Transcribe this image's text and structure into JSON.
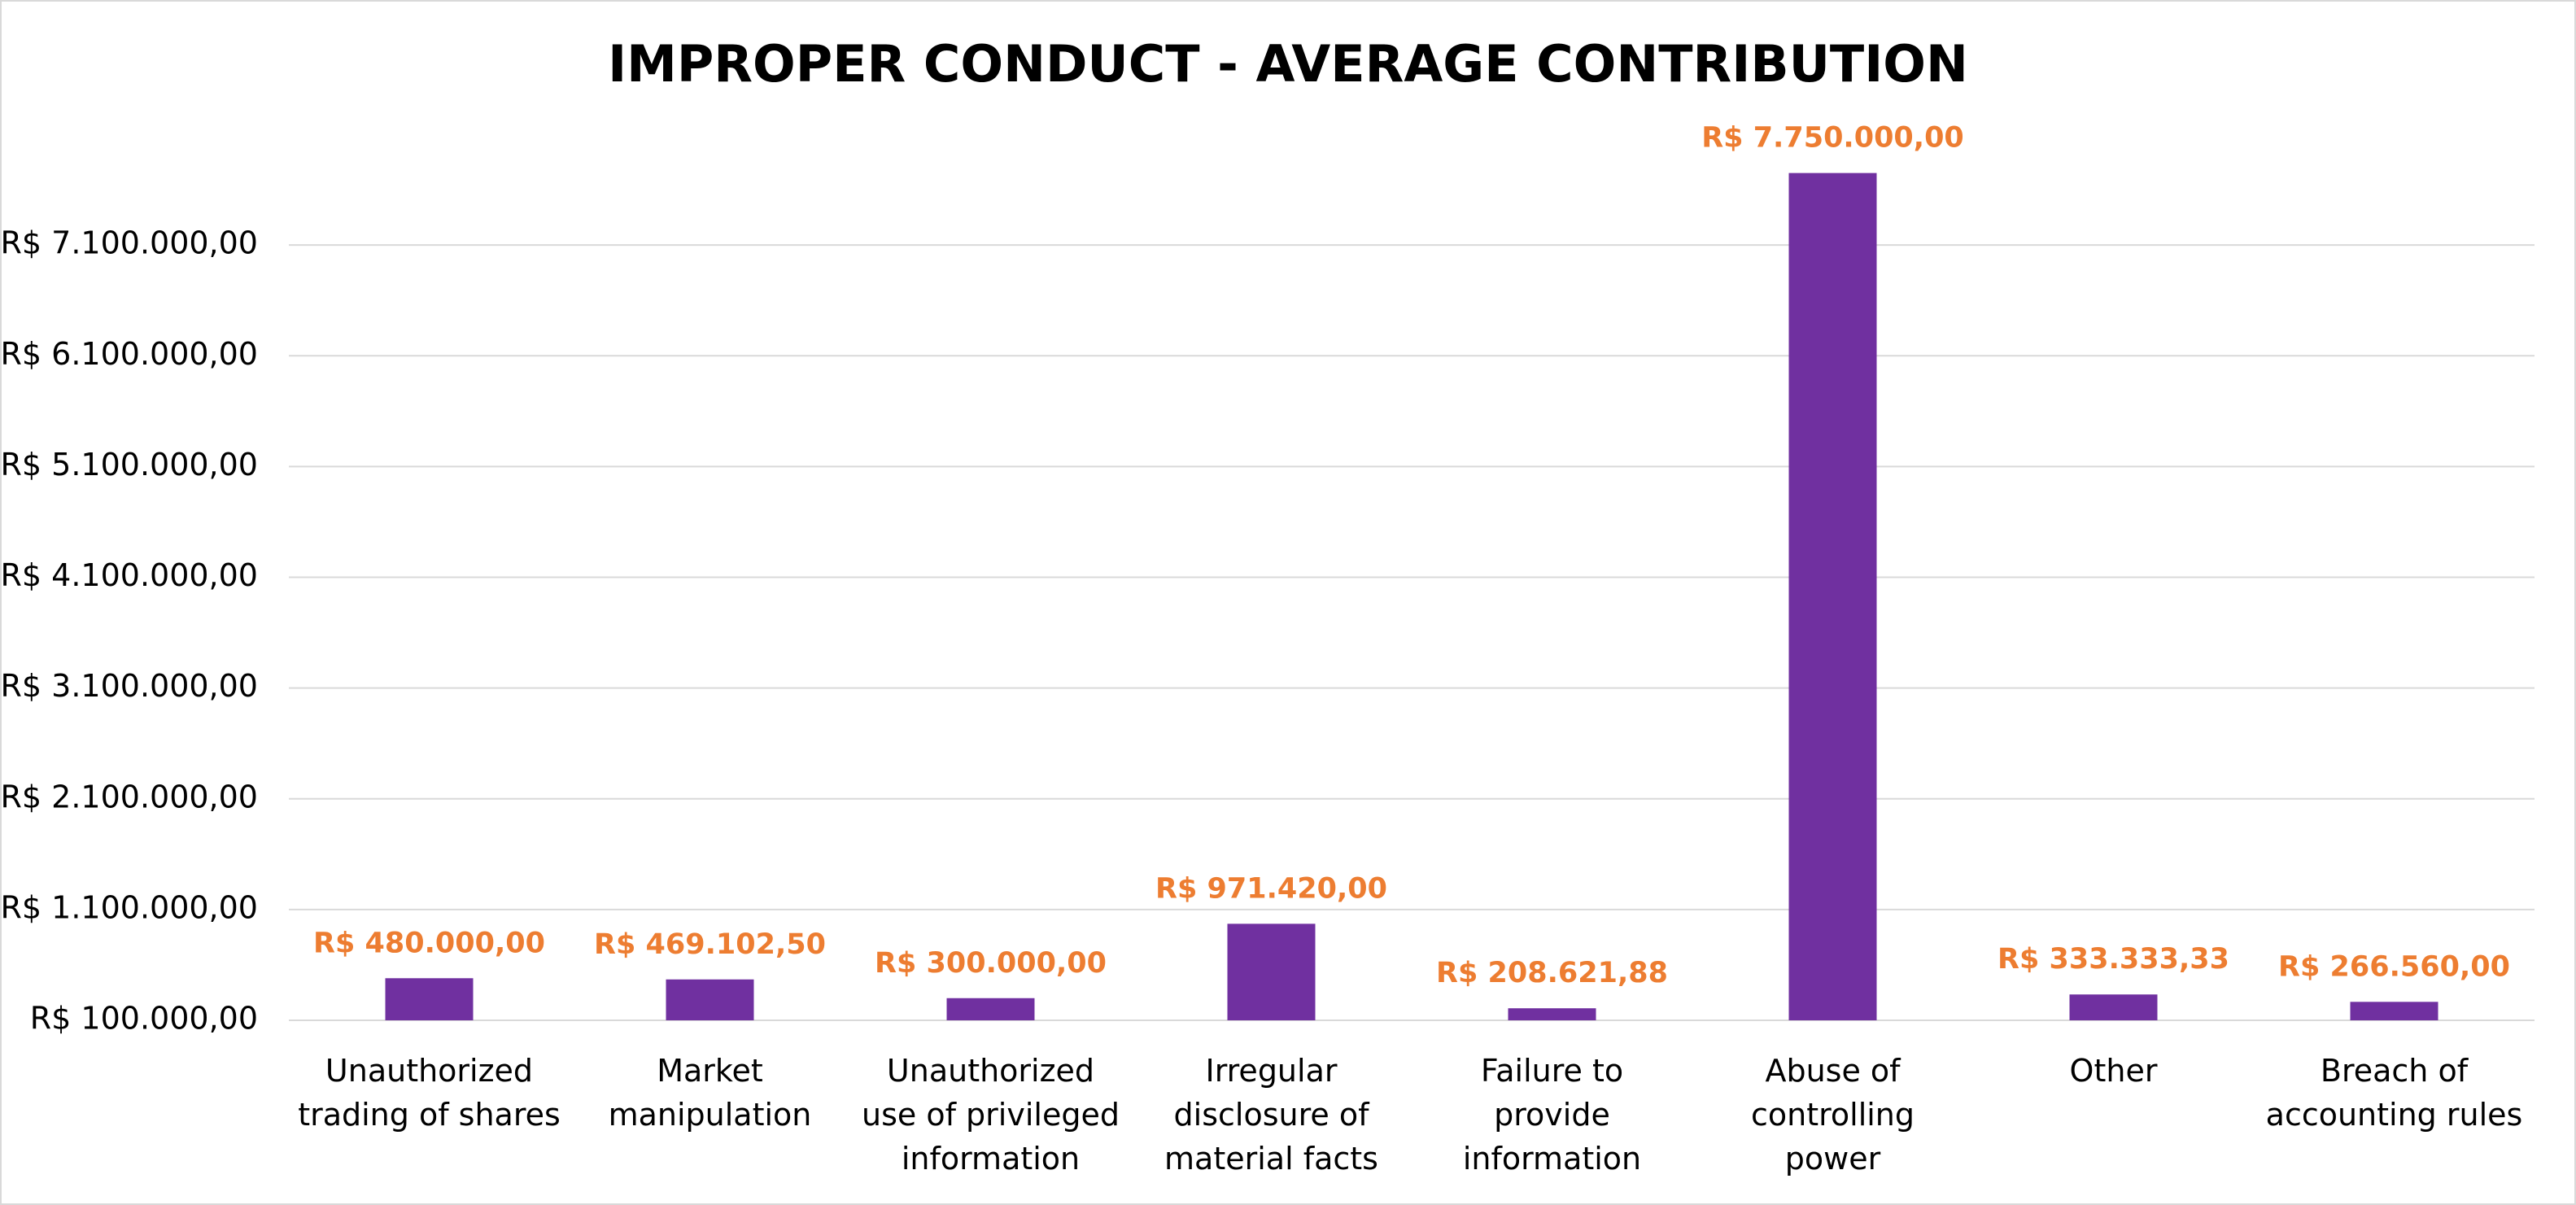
{
  "chart_data": {
    "type": "bar",
    "title": "IMPROPER CONDUCT - AVERAGE CONTRIBUTION",
    "categories": [
      "Unauthorized trading of shares",
      "Market manipulation",
      "Unauthorized use of privileged information",
      "Irregular disclosure of material facts",
      "Failure to provide information",
      "Abuse of controlling power",
      "Other",
      "Breach of accounting rules"
    ],
    "values": [
      480000,
      469102.5,
      300000,
      971420,
      208621.88,
      7750000,
      333333.33,
      266560
    ],
    "value_labels": [
      "R$ 480.000,00",
      "R$ 469.102,50",
      "R$ 300.000,00",
      "R$ 971.420,00",
      "R$ 208.621,88",
      "R$ 7.750.000,00",
      "R$ 333.333,33",
      "R$ 266.560,00"
    ],
    "color": "#7030a0",
    "label_color": "#ed7d31",
    "ylim": [
      100000,
      8100000
    ],
    "yticks": [
      {
        "value": 100000,
        "label": "R$ 100.000,00"
      },
      {
        "value": 1100000,
        "label": "R$ 1.100.000,00"
      },
      {
        "value": 2100000,
        "label": "R$ 2.100.000,00"
      },
      {
        "value": 3100000,
        "label": "R$ 3.100.000,00"
      },
      {
        "value": 4100000,
        "label": "R$ 4.100.000,00"
      },
      {
        "value": 5100000,
        "label": "R$ 5.100.000,00"
      },
      {
        "value": 6100000,
        "label": "R$ 6.100.000,00"
      },
      {
        "value": 7100000,
        "label": "R$ 7.100.000,00"
      }
    ],
    "grid": true
  }
}
